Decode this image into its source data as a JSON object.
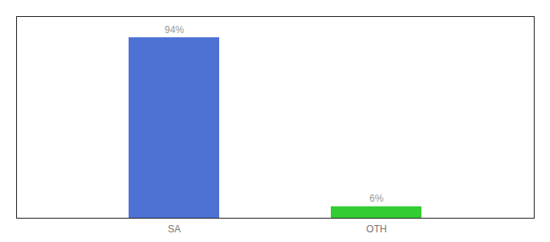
{
  "chart_data": {
    "type": "bar",
    "categories": [
      "SA",
      "OTH"
    ],
    "values": [
      94,
      6
    ],
    "value_labels": [
      "94%",
      "6%"
    ],
    "colors": [
      "#4d72d4",
      "#33cc33"
    ],
    "ylim": [
      0,
      105
    ],
    "data_labels": true,
    "tick_labels": "x"
  }
}
